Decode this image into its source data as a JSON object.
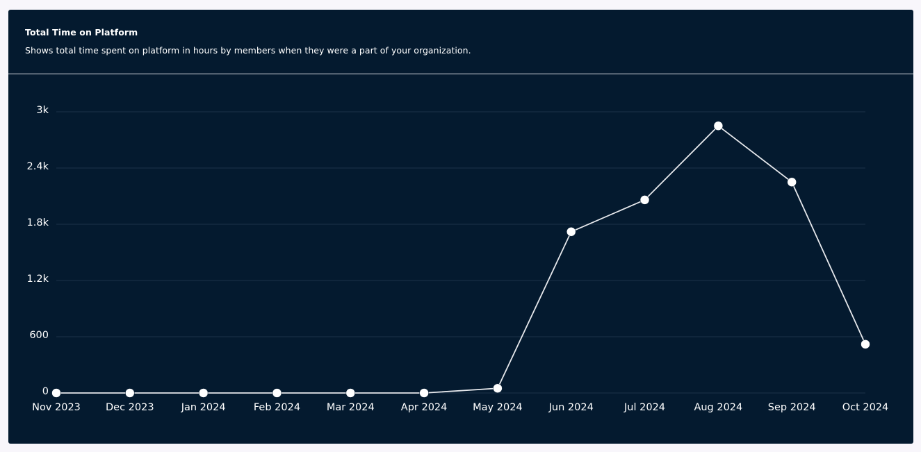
{
  "header": {
    "title": "Total Time on Platform",
    "subtitle": "Shows total time spent on platform in hours by members when they were a part of your organization."
  },
  "colors": {
    "card_background": "#041a2f",
    "page_background": "#f8f6fb",
    "line": "#e6e8ec",
    "point": "#ffffff",
    "gridline": "#1d3148",
    "text": "#ffffff"
  },
  "chart_data": {
    "type": "line",
    "title": "",
    "xlabel": "",
    "ylabel": "",
    "categories": [
      "Nov 2023",
      "Dec 2023",
      "Jan 2024",
      "Feb 2024",
      "Mar 2024",
      "Apr 2024",
      "May 2024",
      "Jun 2024",
      "Jul 2024",
      "Aug 2024",
      "Sep 2024",
      "Oct 2024"
    ],
    "series": [
      {
        "values": [
          0,
          0,
          0,
          0,
          0,
          0,
          50,
          1720,
          2060,
          2850,
          2250,
          520
        ]
      }
    ],
    "ylim": [
      0,
      3000
    ],
    "yticks": [
      0,
      600,
      1200,
      1800,
      2400,
      3000
    ],
    "ytick_labels": [
      "0",
      "600",
      "1.2k",
      "1.8k",
      "2.4k",
      "3k"
    ],
    "grid": true,
    "legend": "none"
  }
}
